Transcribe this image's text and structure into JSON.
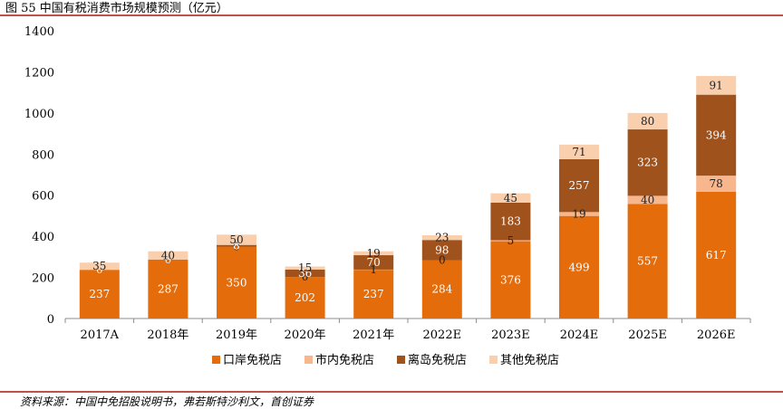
{
  "page": {
    "title": "图 55  中国有税消费市场规模预测（亿元）",
    "source": "资料来源：中国中免招股说明书，弗若斯特沙利文，首创证券"
  },
  "chart_data": {
    "type": "bar",
    "stacked": true,
    "categories": [
      "2017A",
      "2018年",
      "2019年",
      "2020年",
      "2021年",
      "2022E",
      "2023E",
      "2024E",
      "2025E",
      "2026E"
    ],
    "series": [
      {
        "name": "口岸免税店",
        "color": "#e46c0a",
        "values": [
          237,
          287,
          350,
          202,
          237,
          284,
          376,
          499,
          557,
          617
        ]
      },
      {
        "name": "市内免税店",
        "color": "#f8b68c",
        "values": [
          0,
          0,
          0,
          0,
          1,
          0,
          5,
          19,
          40,
          78
        ]
      },
      {
        "name": "离岛免税店",
        "color": "#a0521d",
        "values": [
          0,
          0,
          8,
          36,
          70,
          98,
          183,
          257,
          323,
          394
        ]
      },
      {
        "name": "其他免税店",
        "color": "#f9cfae",
        "values": [
          35,
          40,
          50,
          15,
          19,
          23,
          45,
          71,
          80,
          91
        ]
      }
    ],
    "ylim": [
      0,
      1400
    ],
    "yticks": [
      0,
      200,
      400,
      600,
      800,
      1000,
      1200,
      1400
    ],
    "legend": "bottom",
    "grid": false
  }
}
